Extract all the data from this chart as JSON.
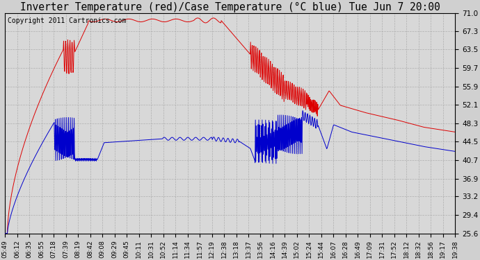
{
  "title": "Inverter Temperature (red)/Case Temperature (°C blue) Tue Jun 7 20:00",
  "copyright": "Copyright 2011 Cartronics.com",
  "yticks": [
    25.6,
    29.4,
    33.2,
    36.9,
    40.7,
    44.5,
    48.3,
    52.1,
    55.9,
    59.7,
    63.5,
    67.3,
    71.0
  ],
  "ylim": [
    25.6,
    71.0
  ],
  "xtick_labels": [
    "05:49",
    "06:12",
    "06:35",
    "06:55",
    "07:18",
    "07:39",
    "08:19",
    "08:42",
    "09:08",
    "09:29",
    "09:45",
    "10:11",
    "10:31",
    "10:52",
    "11:14",
    "11:34",
    "11:57",
    "12:19",
    "12:38",
    "13:18",
    "13:37",
    "13:56",
    "14:16",
    "14:39",
    "15:02",
    "15:24",
    "15:44",
    "16:07",
    "16:28",
    "16:49",
    "17:09",
    "17:31",
    "17:52",
    "18:12",
    "18:32",
    "18:56",
    "19:17",
    "19:38"
  ],
  "bg_color": "#d0d0d0",
  "plot_bg_color": "#d8d8d8",
  "red_color": "#dd0000",
  "blue_color": "#0000cc",
  "grid_color": "#aaaaaa",
  "title_fontsize": 10.5,
  "copyright_fontsize": 7
}
